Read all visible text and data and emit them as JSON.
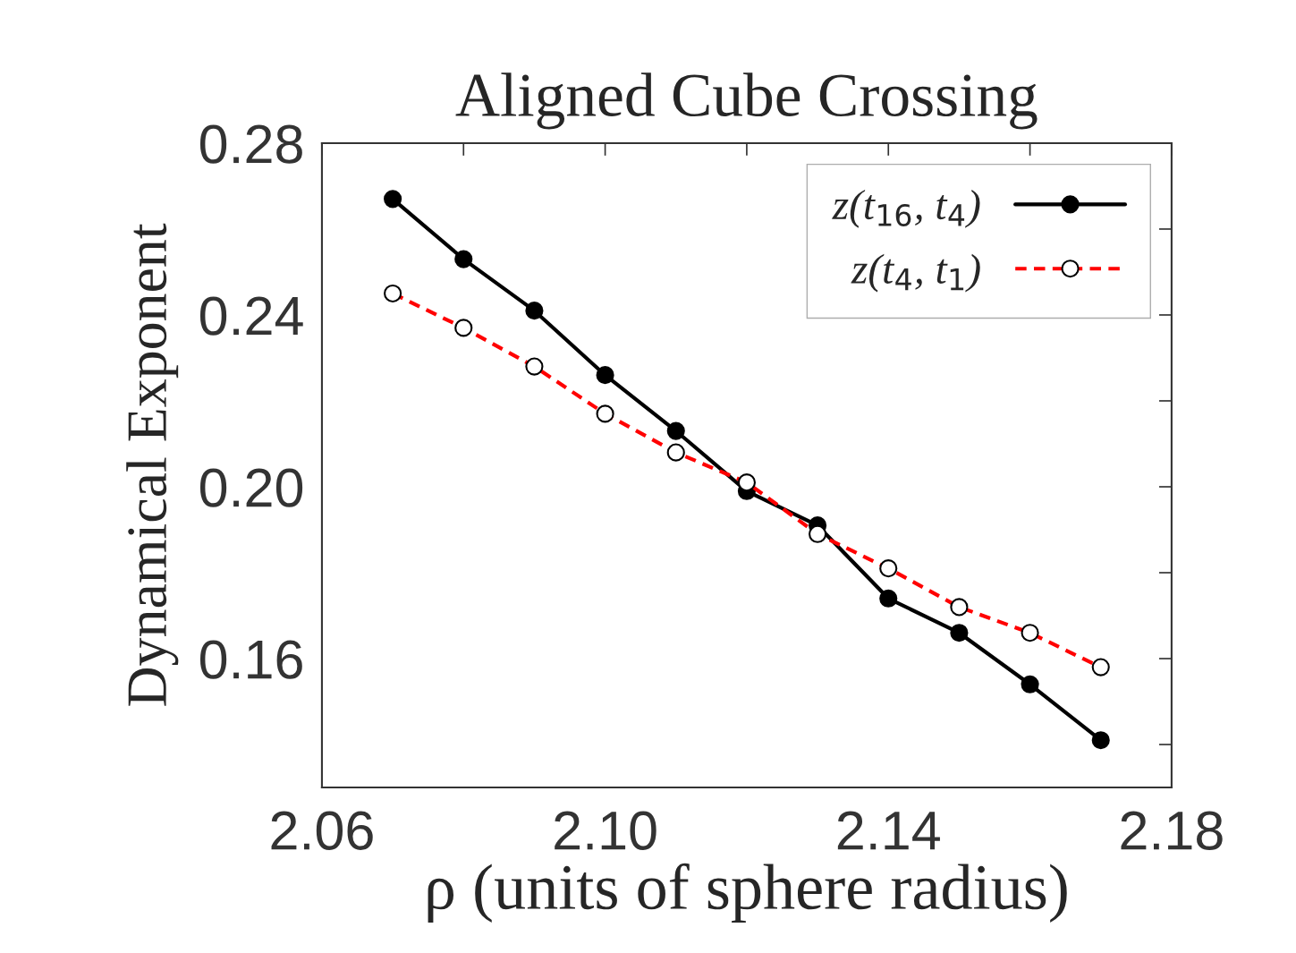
{
  "chart_data": {
    "type": "line",
    "title": "Aligned Cube Crossing",
    "xlabel": "ρ (units of sphere radius)",
    "ylabel": "Dynamical Exponent",
    "x": [
      2.07,
      2.08,
      2.09,
      2.1,
      2.11,
      2.12,
      2.13,
      2.14,
      2.15,
      2.16,
      2.17
    ],
    "series": [
      {
        "name": "z(t$_{16}$, t$_{4}$)",
        "color": "#000000",
        "line_style": "solid",
        "values": [
          0.267,
          0.253,
          0.241,
          0.226,
          0.213,
          0.199,
          0.191,
          0.174,
          0.166,
          0.154,
          0.141
        ]
      },
      {
        "name": "z(t$_{4}$, t$_{1}$)",
        "color": "#ff0000",
        "line_style": "dashed",
        "values": [
          0.245,
          0.237,
          0.228,
          0.217,
          0.208,
          0.201,
          0.189,
          0.181,
          0.172,
          0.166,
          0.158
        ]
      }
    ],
    "marker": "circle",
    "xlim": [
      2.06,
      2.18
    ],
    "xticks": [
      2.06,
      {
        "value": 2.08,
        "label": null
      },
      {
        "value": 2.1,
        "label": "2.10"
      },
      {
        "value": 2.12,
        "label": null
      },
      2.14,
      {
        "value": 2.16,
        "label": null
      },
      2.18
    ],
    "ylim": [
      0.13,
      0.28
    ],
    "yticks": [
      {
        "value": 0.14,
        "label": null
      },
      0.16,
      {
        "value": 0.18,
        "label": null
      },
      {
        "value": 0.2,
        "label": "0.20"
      },
      {
        "value": 0.22,
        "label": null
      },
      0.24,
      {
        "value": 0.26,
        "label": null
      },
      0.28
    ],
    "grid": false,
    "legend": "top right"
  }
}
